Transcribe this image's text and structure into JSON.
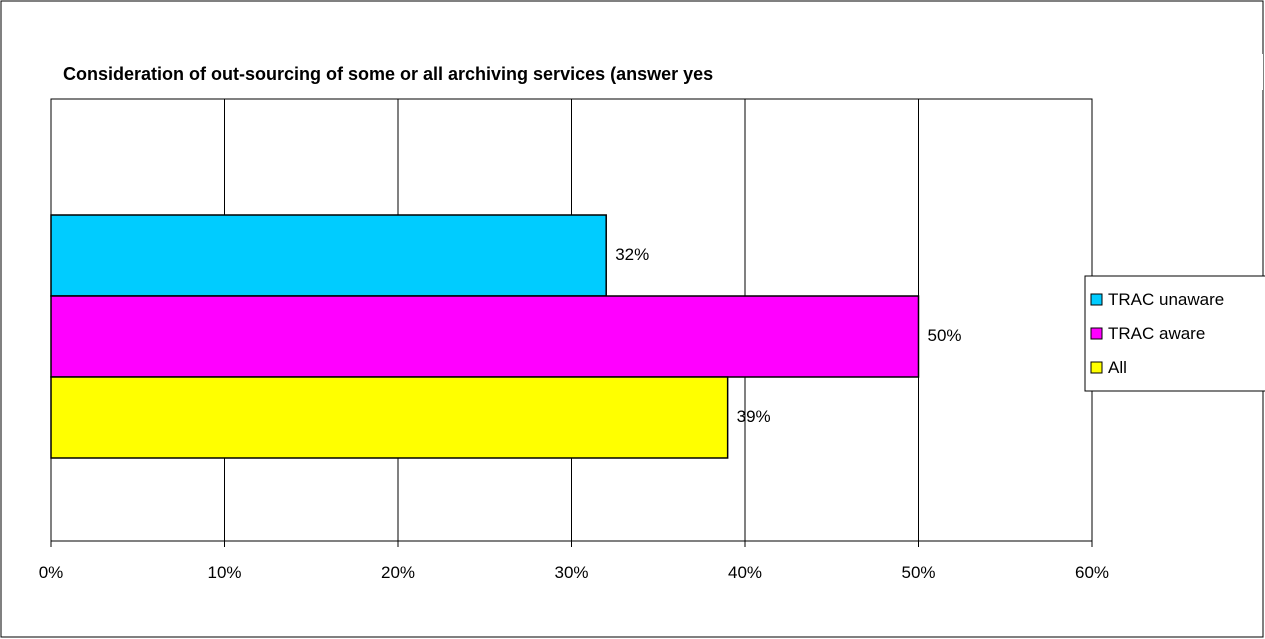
{
  "chart_data": {
    "type": "bar",
    "orientation": "horizontal",
    "title": "Consideration of out-sourcing of some or all archiving services (answer yes",
    "xlabel": "",
    "ylabel": "",
    "xlim": [
      0,
      60
    ],
    "x_ticks": [
      "0%",
      "10%",
      "20%",
      "30%",
      "40%",
      "50%",
      "60%"
    ],
    "grid": true,
    "legend_position": "right",
    "series": [
      {
        "name": "TRAC unaware",
        "value": 32,
        "value_label": "32%",
        "color": "#00ccff"
      },
      {
        "name": "TRAC aware",
        "value": 50,
        "value_label": "50%",
        "color": "#ff00ff"
      },
      {
        "name": "All",
        "value": 39,
        "value_label": "39%",
        "color": "#ffff00"
      }
    ]
  }
}
